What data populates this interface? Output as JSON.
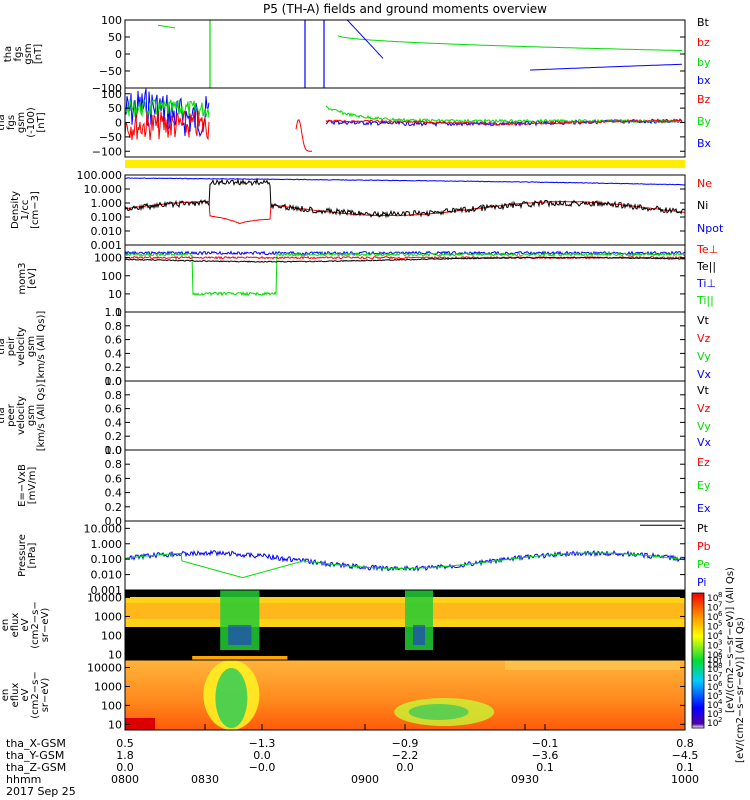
{
  "title": "P5 (TH-A) fields and ground moments overview",
  "chart_data": [
    {
      "type": "line",
      "id": "fgs_gsm",
      "ylabel": [
        "tha",
        "fgs",
        "gsm",
        "[nT]"
      ],
      "ylim": [
        -100,
        100
      ],
      "ytick_labels": [
        "100",
        "50",
        "0",
        "−50",
        "−100"
      ],
      "ytick_values": [
        100,
        50,
        0,
        -50,
        -100
      ],
      "legend": [
        {
          "label": "Bt",
          "color": "#000000"
        },
        {
          "label": "bz",
          "color": "#ff0000"
        },
        {
          "label": "by",
          "color": "#00dd00"
        },
        {
          "label": "bx",
          "color": "#0000ff"
        }
      ]
    },
    {
      "type": "line",
      "id": "fgs_gsm_b",
      "ylabel": [
        "tha",
        "fgs",
        "gsm",
        "(-100)",
        "[nT]"
      ],
      "ylim": [
        -120,
        120
      ],
      "ytick_labels": [
        "100",
        "50",
        "0",
        "−50",
        "−100"
      ],
      "ytick_values": [
        100,
        50,
        0,
        -50,
        -100
      ],
      "legend": [
        {
          "label": "Bz",
          "color": "#ff0000"
        },
        {
          "label": "By",
          "color": "#00dd00"
        },
        {
          "label": "Bx",
          "color": "#0000ff"
        }
      ]
    },
    {
      "type": "line",
      "id": "density",
      "scale": "log",
      "ylabel": [
        "Density",
        "1/cc",
        "[cm−3]"
      ],
      "ylim": [
        0.001,
        100
      ],
      "ytick_labels": [
        "100.000",
        "10.000",
        "1.000",
        "0.100",
        "0.010",
        "0.001"
      ],
      "ytick_values": [
        100,
        10,
        1,
        0.1,
        0.01,
        0.001
      ],
      "legend": [
        {
          "label": "Ne",
          "color": "#ff0000"
        },
        {
          "label": "Ni",
          "color": "#000000"
        },
        {
          "label": "Npot",
          "color": "#0000ff"
        }
      ]
    },
    {
      "type": "line",
      "id": "temperature",
      "scale": "log",
      "ylabel": [
        "mom3",
        "[eV]"
      ],
      "ylim": [
        1,
        5000
      ],
      "ytick_labels": [
        "1000",
        "100",
        "10",
        "1"
      ],
      "ytick_values": [
        1000,
        100,
        10,
        1
      ],
      "legend": [
        {
          "label": "Te⊥",
          "color": "#ff0000"
        },
        {
          "label": "Te||",
          "color": "#000000"
        },
        {
          "label": "Ti⊥",
          "color": "#0000ff"
        },
        {
          "label": "Ti||",
          "color": "#00dd00"
        }
      ]
    },
    {
      "type": "line",
      "id": "peir_velocity",
      "ylabel": [
        "tha",
        "peir",
        "velocity",
        "gsm",
        "[km/s (All Qs)]"
      ],
      "ylim": [
        0,
        1
      ],
      "ytick_labels": [
        "1.0",
        "0.8",
        "0.6",
        "0.4",
        "0.2",
        "0.0"
      ],
      "ytick_values": [
        1,
        0.8,
        0.6,
        0.4,
        0.2,
        0
      ],
      "legend": [
        {
          "label": "Vt",
          "color": "#000000"
        },
        {
          "label": "Vz",
          "color": "#ff0000"
        },
        {
          "label": "Vy",
          "color": "#00dd00"
        },
        {
          "label": "Vx",
          "color": "#0000ff"
        }
      ]
    },
    {
      "type": "line",
      "id": "peer_velocity",
      "ylabel": [
        "tha",
        "peer",
        "velocity",
        "gsm",
        "[km/s (All Qs)]"
      ],
      "ylim": [
        0,
        1
      ],
      "ytick_labels": [
        "1.0",
        "0.8",
        "0.6",
        "0.4",
        "0.2",
        "0.0"
      ],
      "ytick_values": [
        1,
        0.8,
        0.6,
        0.4,
        0.2,
        0
      ],
      "legend": [
        {
          "label": "Vt",
          "color": "#000000"
        },
        {
          "label": "Vz",
          "color": "#ff0000"
        },
        {
          "label": "Vy",
          "color": "#00dd00"
        },
        {
          "label": "Vx",
          "color": "#0000ff"
        }
      ]
    },
    {
      "type": "line",
      "id": "efield",
      "ylabel": [
        "E=−VxB",
        "[mV/m]"
      ],
      "ylim": [
        0,
        1
      ],
      "ytick_labels": [
        "1.0",
        "0.8",
        "0.6",
        "0.4",
        "0.2",
        "0.0"
      ],
      "ytick_values": [
        1,
        0.8,
        0.6,
        0.4,
        0.2,
        0
      ],
      "legend": [
        {
          "label": "Ez",
          "color": "#ff0000"
        },
        {
          "label": "Ey",
          "color": "#00dd00"
        },
        {
          "label": "Ex",
          "color": "#0000ff"
        }
      ]
    },
    {
      "type": "line",
      "id": "pressure",
      "scale": "log",
      "ylabel": [
        "Pressure",
        "[nPa]"
      ],
      "ylim": [
        0.001,
        30
      ],
      "ytick_labels": [
        "10.000",
        "1.000",
        "0.100",
        "0.010",
        "0.001"
      ],
      "ytick_values": [
        10,
        1,
        0.1,
        0.01,
        0.001
      ],
      "legend": [
        {
          "label": "Pt",
          "color": "#000000"
        },
        {
          "label": "Pb",
          "color": "#ff0000"
        },
        {
          "label": "Pe",
          "color": "#00dd00"
        },
        {
          "label": "Pi",
          "color": "#0000ff"
        }
      ]
    },
    {
      "type": "heatmap",
      "id": "peir_eflux",
      "scale": "log",
      "ylabel": [
        "tha",
        "peir",
        "en",
        "eflux",
        "eV",
        "(cm2−s−",
        "sr−eV)"
      ],
      "ylim": [
        5,
        25000
      ],
      "ytick_labels": [
        "10000",
        "1000",
        "100",
        "10"
      ],
      "ytick_values": [
        10000,
        1000,
        100,
        10
      ],
      "colorbar_tick_exponents": [
        "8",
        "7",
        "6",
        "5",
        "4",
        "3",
        "2",
        "1"
      ],
      "colorbar_label": "[eV/(cm2−s−sr−eV)] (All Qs)"
    },
    {
      "type": "heatmap",
      "id": "peer_eflux",
      "scale": "log",
      "ylabel": [
        "tha",
        "peer",
        "en",
        "eflux",
        "eV",
        "(cm2−s−",
        "sr−eV)"
      ],
      "ylim": [
        5,
        25000
      ],
      "ytick_labels": [
        "10000",
        "1000",
        "100",
        "10"
      ],
      "ytick_values": [
        10000,
        1000,
        100,
        10
      ],
      "colorbar_tick_exponents": [
        "9",
        "8",
        "7",
        "6",
        "5",
        "4",
        "3",
        "2"
      ],
      "colorbar_label": "[eV/(cm2−s−sr−eV)] (All Qs)"
    }
  ],
  "x_axis": {
    "row_labels": [
      "tha_X-GSM",
      "tha_Y-GSM",
      "tha_Z-GSM",
      "hhmm",
      "2017 Sep 25"
    ],
    "columns": [
      {
        "values": [
          "0.5",
          "1.8",
          "0.0",
          "0800"
        ]
      },
      {
        "values": [
          "",
          "",
          "",
          "0830"
        ]
      },
      {
        "values": [
          "−1.3",
          "0.0",
          "−0.0",
          ""
        ]
      },
      {
        "values": [
          "",
          "",
          "",
          "0900"
        ]
      },
      {
        "values": [
          "−0.9",
          "−2.2",
          "0.0",
          ""
        ]
      },
      {
        "values": [
          "",
          "",
          "",
          "0930"
        ]
      },
      {
        "values": [
          "−0.1",
          "−3.6",
          "0.1",
          ""
        ]
      },
      {
        "values": [
          "0.8",
          "−4.5",
          "0.1",
          "1000"
        ]
      }
    ]
  }
}
